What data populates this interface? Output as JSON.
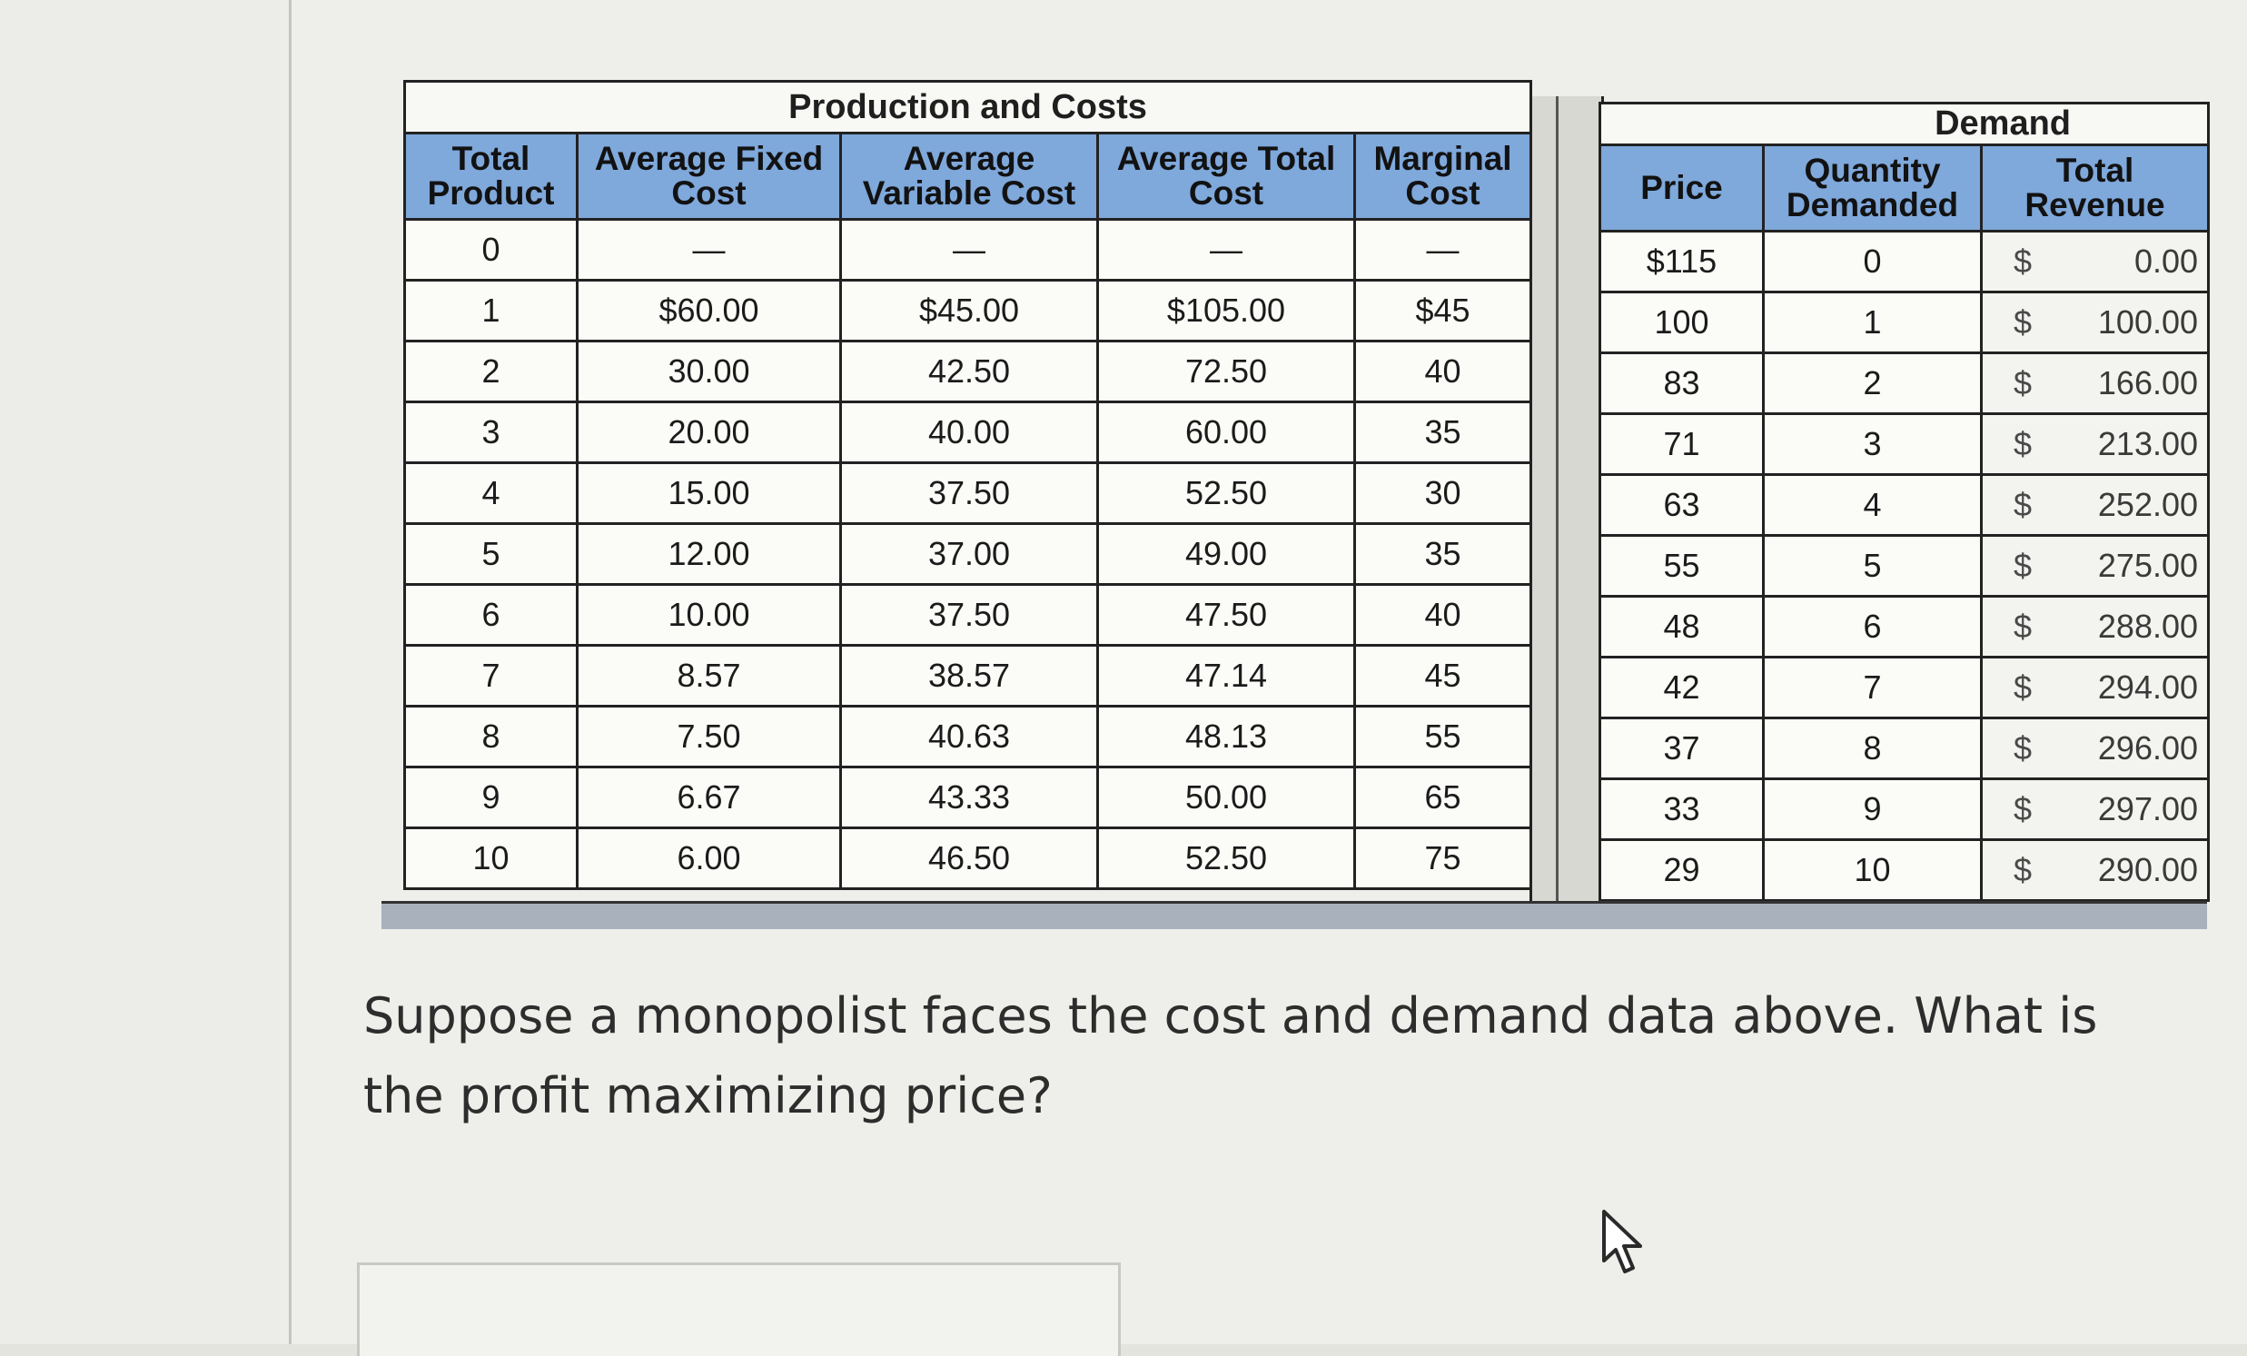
{
  "cost_table": {
    "title": "Production and Costs",
    "headers": [
      "Total Product",
      "Average Fixed Cost",
      "Average Variable Cost",
      "Average Total Cost",
      "Marginal Cost"
    ],
    "rows": [
      [
        "0",
        "—",
        "—",
        "—",
        "—"
      ],
      [
        "1",
        "$60.00",
        "$45.00",
        "$105.00",
        "$45"
      ],
      [
        "2",
        "30.00",
        "42.50",
        "72.50",
        "40"
      ],
      [
        "3",
        "20.00",
        "40.00",
        "60.00",
        "35"
      ],
      [
        "4",
        "15.00",
        "37.50",
        "52.50",
        "30"
      ],
      [
        "5",
        "12.00",
        "37.00",
        "49.00",
        "35"
      ],
      [
        "6",
        "10.00",
        "37.50",
        "47.50",
        "40"
      ],
      [
        "7",
        "8.57",
        "38.57",
        "47.14",
        "45"
      ],
      [
        "8",
        "7.50",
        "40.63",
        "48.13",
        "55"
      ],
      [
        "9",
        "6.67",
        "43.33",
        "50.00",
        "65"
      ],
      [
        "10",
        "6.00",
        "46.50",
        "52.50",
        "75"
      ]
    ]
  },
  "demand_table": {
    "title": "Demand",
    "headers": [
      "Price",
      "Quantity Demanded",
      "Total Revenue"
    ],
    "currency_symbol": "$",
    "rows": [
      [
        "$115",
        "0",
        "0.00"
      ],
      [
        "100",
        "1",
        "100.00"
      ],
      [
        "83",
        "2",
        "166.00"
      ],
      [
        "71",
        "3",
        "213.00"
      ],
      [
        "63",
        "4",
        "252.00"
      ],
      [
        "55",
        "5",
        "275.00"
      ],
      [
        "48",
        "6",
        "288.00"
      ],
      [
        "42",
        "7",
        "294.00"
      ],
      [
        "37",
        "8",
        "296.00"
      ],
      [
        "33",
        "9",
        "297.00"
      ],
      [
        "29",
        "10",
        "290.00"
      ]
    ]
  },
  "question": {
    "text": "Suppose a monopolist faces the cost and demand data above. What is the profit maximizing price?"
  },
  "cursor": {
    "icon": "mouse-pointer-icon"
  },
  "colors": {
    "header_blue": "#7fa8db",
    "page_bg": "#eeeeea",
    "border": "#222222"
  }
}
